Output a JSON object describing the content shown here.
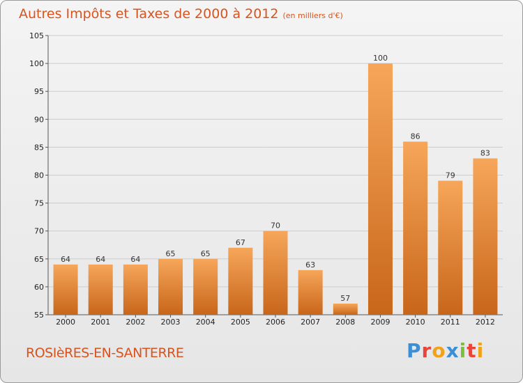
{
  "header": {
    "title": "Autres Impôts et Taxes de 2000 à 2012",
    "subtitle": "(en milliers d'€)"
  },
  "footer": {
    "commune": "ROSIèRES-EN-SANTERRE",
    "logo_letters": [
      "P",
      "r",
      "o",
      "x",
      "i",
      "t",
      "i"
    ],
    "logo_colors": [
      "#3a8fd6",
      "#e8443a",
      "#f0a21a",
      "#3a8fd6",
      "#7cbf3a",
      "#e8443a",
      "#f0a21a"
    ]
  },
  "colors": {
    "bar_light": "#f6a65a",
    "bar_dark": "#c8661a",
    "grid": "#cccccc",
    "title": "#d9531e"
  },
  "chart_data": {
    "type": "bar",
    "title": "Autres Impôts et Taxes de 2000 à 2012",
    "subtitle": "(en milliers d'€)",
    "xlabel": "",
    "ylabel": "",
    "categories": [
      "2000",
      "2001",
      "2002",
      "2003",
      "2004",
      "2005",
      "2006",
      "2007",
      "2008",
      "2009",
      "2010",
      "2011",
      "2012"
    ],
    "values": [
      64,
      64,
      64,
      65,
      65,
      67,
      70,
      63,
      57,
      100,
      86,
      79,
      83
    ],
    "ylim": [
      55,
      105
    ],
    "yticks": [
      55,
      60,
      65,
      70,
      75,
      80,
      85,
      90,
      95,
      100,
      105
    ],
    "grid": true
  }
}
